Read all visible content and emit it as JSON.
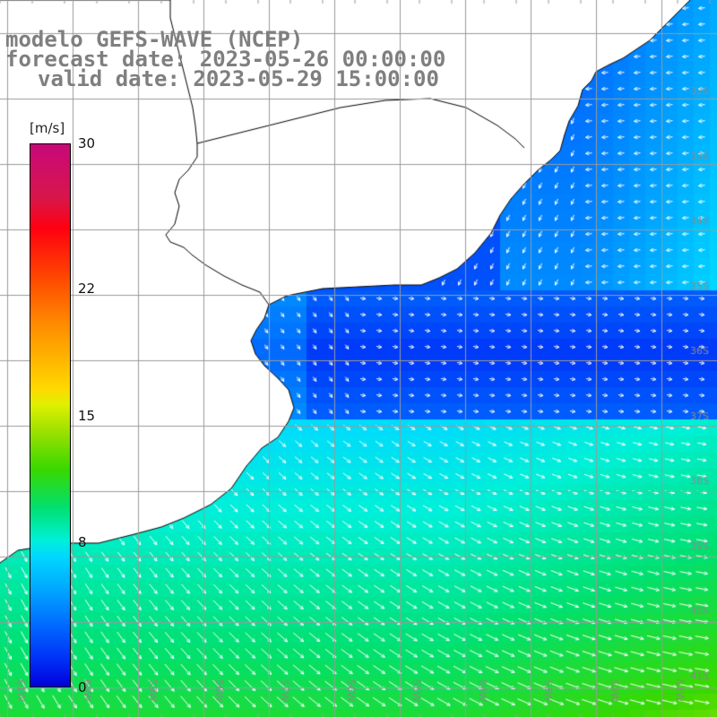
{
  "title": {
    "line1": "modelo GEFS-WAVE (NCEP)",
    "line2": "forecast date: 2023-05-26 00:00:00",
    "line3": "valid date: 2023-05-29 15:00:00"
  },
  "colorbar": {
    "unit": "[m/s]",
    "ticks": [
      {
        "value": 30,
        "label": "30"
      },
      {
        "value": 22,
        "label": "22"
      },
      {
        "value": 15,
        "label": "15"
      },
      {
        "value": 8,
        "label": "8"
      },
      {
        "value": 0,
        "label": "0"
      }
    ],
    "range": [
      0,
      30
    ]
  },
  "map": {
    "lon_labels": [
      "61W",
      "60W",
      "59W",
      "58W",
      "57W",
      "56W",
      "55W",
      "54W",
      "53W",
      "52W",
      "51W"
    ],
    "lat_labels": [
      "32S",
      "33S",
      "34S",
      "35S",
      "36S",
      "37S",
      "38S",
      "39S",
      "40S",
      "41S"
    ],
    "colors": {
      "land": "#ffffff",
      "grid": "#9a9a9a",
      "coast": "#000000",
      "arrow": "#ffffff",
      "title": "#7f7f7f"
    }
  }
}
